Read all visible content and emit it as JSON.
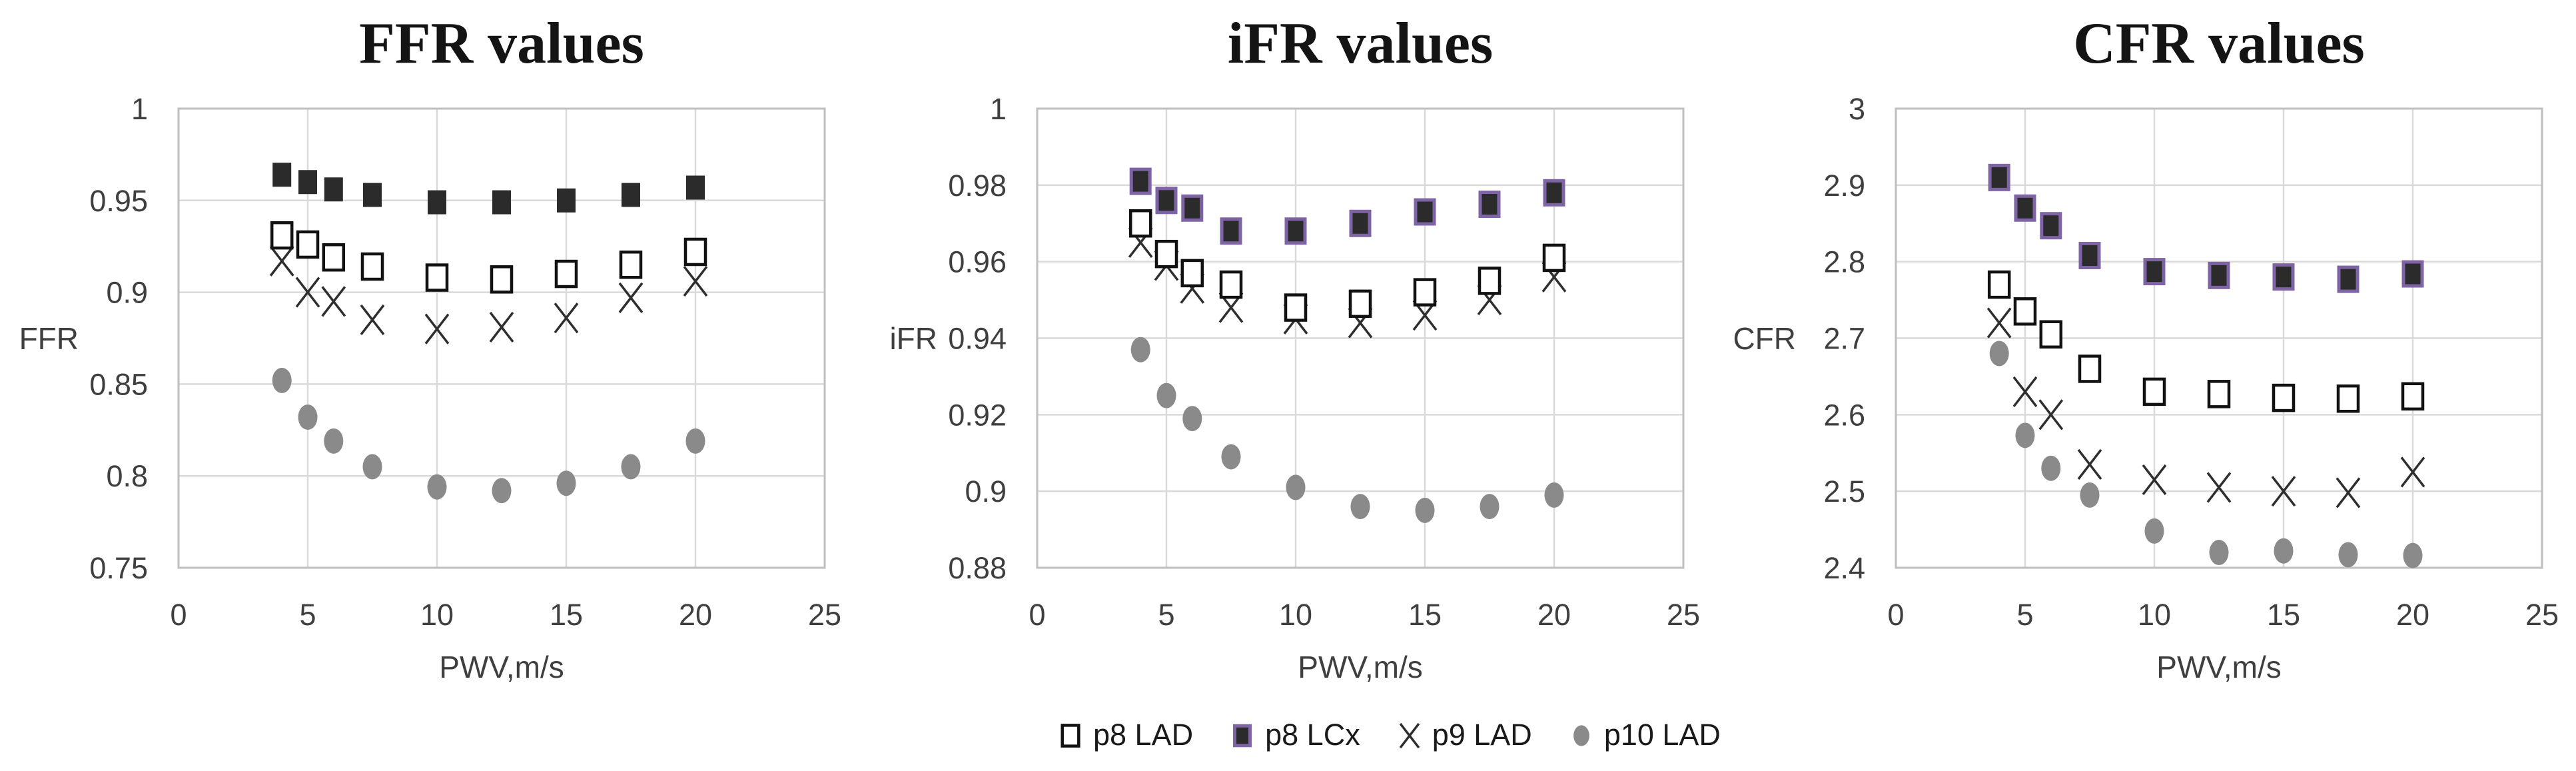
{
  "chart_data": [
    {
      "type": "scatter",
      "title": "FFR values",
      "xlabel": "PWV,m/s",
      "ylabel": "FFR",
      "xlim": [
        0,
        25
      ],
      "ylim": [
        0.75,
        1
      ],
      "xticks": [
        0,
        5,
        10,
        15,
        20,
        25
      ],
      "ytick_values": [
        1,
        0.95,
        0.9,
        0.85,
        0.8,
        0.75
      ],
      "ytick_labels": [
        "1",
        "0.95",
        "0.9",
        "0.85",
        "0.8",
        "0.75"
      ],
      "grid": true,
      "legend_position": "none",
      "x": [
        4,
        5,
        6,
        7.5,
        10,
        12.5,
        15,
        17.5,
        20
      ],
      "series": [
        {
          "name": "p8 LAD",
          "marker": "open-square",
          "color": "#111111",
          "fill": "#ffffff",
          "values": [
            0.931,
            0.926,
            0.919,
            0.914,
            0.908,
            0.907,
            0.91,
            0.915,
            0.922
          ]
        },
        {
          "name": "p8 LCx",
          "marker": "filled-square",
          "color": "none",
          "fill": "#2b2b2b",
          "values": [
            0.964,
            0.96,
            0.956,
            0.953,
            0.949,
            0.949,
            0.95,
            0.953,
            0.957
          ]
        },
        {
          "name": "p9 LAD",
          "marker": "cross",
          "color": "#2e2e2e",
          "values": [
            0.917,
            0.9,
            0.895,
            0.885,
            0.88,
            0.881,
            0.886,
            0.897,
            0.906
          ]
        },
        {
          "name": "p10 LAD",
          "marker": "circle",
          "fill": "#8a8a8a",
          "values": [
            0.852,
            0.832,
            0.819,
            0.805,
            0.794,
            0.792,
            0.796,
            0.805,
            0.819
          ]
        }
      ]
    },
    {
      "type": "scatter",
      "title": "iFR values",
      "xlabel": "PWV,m/s",
      "ylabel": "iFR",
      "xlim": [
        0,
        25
      ],
      "ylim": [
        0.88,
        1
      ],
      "xticks": [
        0,
        5,
        10,
        15,
        20,
        25
      ],
      "ytick_values": [
        1,
        0.98,
        0.96,
        0.94,
        0.92,
        0.9,
        0.88
      ],
      "ytick_labels": [
        "1",
        "0.98",
        "0.96",
        "0.94",
        "0.92",
        "0.9",
        "0.88"
      ],
      "grid": true,
      "legend_position": "none",
      "x": [
        4,
        5,
        6,
        7.5,
        10,
        12.5,
        15,
        17.5,
        20
      ],
      "series": [
        {
          "name": "p8 LAD",
          "marker": "open-square",
          "color": "#111111",
          "fill": "#ffffff",
          "values": [
            0.97,
            0.962,
            0.957,
            0.954,
            0.948,
            0.949,
            0.952,
            0.955,
            0.961
          ]
        },
        {
          "name": "p8 LCx",
          "marker": "filled-square",
          "color": "#7e64a4",
          "fill": "#2b2b2b",
          "values": [
            0.981,
            0.976,
            0.974,
            0.968,
            0.968,
            0.97,
            0.973,
            0.975,
            0.978
          ]
        },
        {
          "name": "p9 LAD",
          "marker": "cross",
          "color": "#2e2e2e",
          "values": [
            0.965,
            0.959,
            0.953,
            0.948,
            0.945,
            0.944,
            0.946,
            0.95,
            0.956
          ]
        },
        {
          "name": "p10 LAD",
          "marker": "circle",
          "fill": "#8a8a8a",
          "values": [
            0.937,
            0.925,
            0.919,
            0.909,
            0.901,
            0.896,
            0.895,
            0.896,
            0.899
          ]
        }
      ]
    },
    {
      "type": "scatter",
      "title": "CFR values",
      "xlabel": "PWV,m/s",
      "ylabel": "CFR",
      "xlim": [
        0,
        25
      ],
      "ylim": [
        2.4,
        3
      ],
      "xticks": [
        0,
        5,
        10,
        15,
        20,
        25
      ],
      "ytick_values": [
        3,
        2.9,
        2.8,
        2.7,
        2.6,
        2.5,
        2.4
      ],
      "ytick_labels": [
        "3",
        "2.9",
        "2.8",
        "2.7",
        "2.6",
        "2.5",
        "2.4"
      ],
      "grid": true,
      "legend_position": "none",
      "x": [
        4,
        5,
        6,
        7.5,
        10,
        12.5,
        15,
        17.5,
        20
      ],
      "series": [
        {
          "name": "p8 LAD",
          "marker": "open-square",
          "color": "#111111",
          "fill": "#ffffff",
          "values": [
            2.77,
            2.735,
            2.705,
            2.66,
            2.63,
            2.627,
            2.622,
            2.621,
            2.624
          ]
        },
        {
          "name": "p8 LCx",
          "marker": "filled-square",
          "color": "#7e64a4",
          "fill": "#2b2b2b",
          "values": [
            2.91,
            2.87,
            2.847,
            2.808,
            2.787,
            2.782,
            2.78,
            2.777,
            2.784
          ]
        },
        {
          "name": "p9 LAD",
          "marker": "cross",
          "color": "#2e2e2e",
          "values": [
            2.72,
            2.63,
            2.6,
            2.535,
            2.515,
            2.505,
            2.5,
            2.498,
            2.525
          ]
        },
        {
          "name": "p10 LAD",
          "marker": "circle",
          "fill": "#8a8a8a",
          "values": [
            2.68,
            2.573,
            2.53,
            2.495,
            2.448,
            2.42,
            2.422,
            2.417,
            2.416
          ]
        }
      ]
    }
  ],
  "legend": {
    "items": [
      {
        "label": "p8 LAD",
        "marker": "open-square",
        "color": "#111111",
        "fill": "#ffffff"
      },
      {
        "label": "p8 LCx",
        "marker": "filled-square",
        "color": "#7e64a4",
        "fill": "#2b2b2b"
      },
      {
        "label": "p9 LAD",
        "marker": "cross",
        "color": "#2e2e2e"
      },
      {
        "label": "p10 LAD",
        "marker": "circle",
        "fill": "#8a8a8a"
      }
    ]
  },
  "colors": {
    "gridline": "#d9d9d9",
    "plot_border": "#bfbfbf",
    "tick_text": "#3f3f3f",
    "title_text": "#141414",
    "legend_text": "#1a1a1a",
    "accent_purple": "#7e64a4",
    "marker_gray": "#8a8a8a"
  }
}
